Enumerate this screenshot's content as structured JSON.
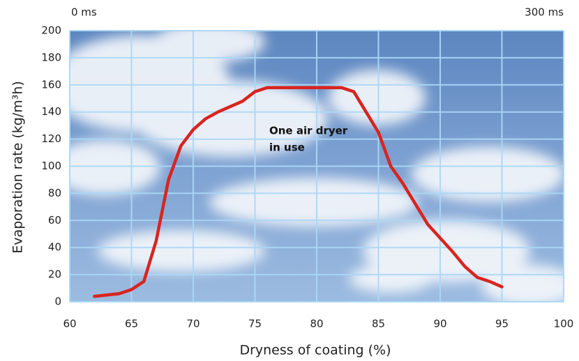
{
  "chart_data": {
    "type": "line",
    "x_label": "Dryness of coating (%)",
    "y_label": "Evaporation rate (kg/m³h)",
    "top_left_label": "0 ms",
    "top_right_label": "300 ms",
    "annotation": [
      "One air dryer",
      "in use"
    ],
    "xlim": [
      60,
      100
    ],
    "xticks": [
      60,
      65,
      70,
      75,
      80,
      85,
      90,
      95,
      100
    ],
    "ylim": [
      0,
      200
    ],
    "yticks": [
      0,
      20,
      40,
      60,
      80,
      100,
      120,
      140,
      160,
      180,
      200
    ],
    "grid": true,
    "series": [
      {
        "color": "#d9241f",
        "x": [
          62,
          64,
          65,
          66,
          67,
          68,
          69,
          70,
          71,
          72,
          74,
          75,
          76,
          78,
          80,
          82,
          83,
          84,
          85,
          86,
          87,
          88,
          89,
          90,
          91,
          92,
          93,
          94,
          95
        ],
        "values": [
          4,
          6,
          9,
          15,
          45,
          90,
          115,
          127,
          135,
          140,
          148,
          155,
          158,
          158,
          158,
          158,
          155,
          140,
          125,
          100,
          87,
          72,
          57,
          47,
          37,
          26,
          18,
          15,
          11
        ]
      }
    ]
  }
}
